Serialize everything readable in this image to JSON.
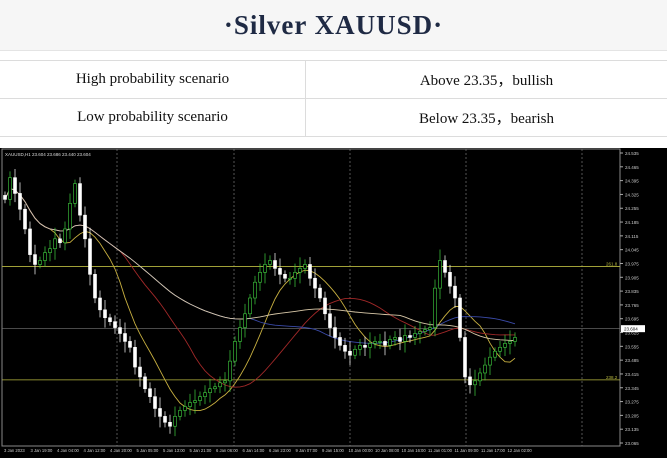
{
  "title": "·Silver  XAUUSD·",
  "scenarios": [
    {
      "label": "High probability scenario",
      "value": "Above  23.35，bullish"
    },
    {
      "label": "Low probability  scenario",
      "value": "Below  23.35，bearish"
    }
  ],
  "chart_data": {
    "type": "candlestick",
    "header": "XAUUSD,H1  23.604 23.686 23.440 23.604",
    "ylim": [
      23.065,
      24.535
    ],
    "y_ticks": [
      "24.535",
      "24.465",
      "24.395",
      "24.325",
      "24.255",
      "24.185",
      "24.115",
      "24.045",
      "23.975",
      "23.905",
      "23.835",
      "23.765",
      "23.695",
      "23.625",
      "23.555",
      "23.485",
      "23.415",
      "23.345",
      "23.275",
      "23.205",
      "23.135",
      "23.065"
    ],
    "x_ticks": [
      "3 Jan 2023",
      "3 Jan 19:00",
      "4 Jan 04:00",
      "4 Jan 12:00",
      "4 Jan 20:00",
      "5 Jan 05:00",
      "5 Jan 13:00",
      "5 Jan 21:00",
      "6 Jan 06:00",
      "6 Jan 14:00",
      "6 Jan 23:00",
      "9 Jan 07:00",
      "9 Jan 15:00",
      "10 Jan 00:00",
      "10 Jan 08:00",
      "10 Jan 16:00",
      "11 Jan 01:00",
      "11 Jan 09:00",
      "11 Jan 17:00",
      "12 Jan 02:00"
    ],
    "current_price": "23.604",
    "levels": [
      {
        "label": "261.8",
        "price": 23.96
      },
      {
        "label": "238.2",
        "price": 23.385
      }
    ],
    "closes": [
      24.3,
      24.41,
      24.33,
      24.25,
      24.15,
      24.02,
      23.97,
      23.99,
      24.03,
      24.05,
      24.1,
      24.08,
      24.15,
      24.28,
      24.38,
      24.22,
      24.1,
      23.92,
      23.8,
      23.74,
      23.7,
      23.68,
      23.65,
      23.62,
      23.58,
      23.55,
      23.45,
      23.4,
      23.34,
      23.3,
      23.24,
      23.2,
      23.17,
      23.15,
      23.2,
      23.23,
      23.25,
      23.27,
      23.28,
      23.3,
      23.32,
      23.34,
      23.35,
      23.37,
      23.38,
      23.48,
      23.58,
      23.65,
      23.72,
      23.8,
      23.88,
      23.93,
      23.97,
      23.99,
      23.95,
      23.92,
      23.9,
      23.9,
      23.93,
      23.95,
      23.97,
      23.9,
      23.85,
      23.8,
      23.72,
      23.65,
      23.6,
      23.56,
      23.53,
      23.51,
      23.54,
      23.56,
      23.55,
      23.57,
      23.58,
      23.58,
      23.56,
      23.59,
      23.6,
      23.58,
      23.61,
      23.6,
      23.62,
      23.63,
      23.64,
      23.65,
      23.85,
      23.99,
      23.93,
      23.86,
      23.8,
      23.6,
      23.4,
      23.36,
      23.38,
      23.42,
      23.46,
      23.5,
      23.53,
      23.55,
      23.57,
      23.58,
      23.6
    ],
    "moving_averages": [
      {
        "period": 10,
        "color": "#c8b040"
      },
      {
        "period": 24,
        "color": "#a02828"
      },
      {
        "period": 50,
        "color": "#3a4aa8"
      },
      {
        "period": 80,
        "color": "#d8c8a8"
      }
    ],
    "colors": {
      "bull": "#40d040",
      "bear": "#ffffff",
      "level": "#b8b840",
      "grid": "#8a8a8a"
    }
  }
}
